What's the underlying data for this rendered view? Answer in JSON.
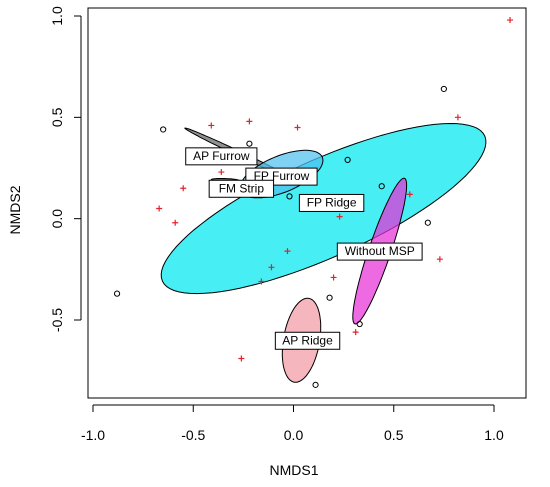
{
  "chart_data": {
    "type": "scatter",
    "title": "",
    "xlabel": "NMDS1",
    "ylabel": "NMDS2",
    "xlim": [
      -1.0,
      1.1
    ],
    "ylim": [
      -0.9,
      1.05
    ],
    "xticks": [
      -1.0,
      -0.5,
      0.0,
      0.5,
      1.0
    ],
    "xtick_labels": [
      "-1.0",
      "-0.5",
      "0.0",
      "0.5",
      "1.0"
    ],
    "yticks": [
      -0.5,
      0.0,
      0.5,
      1.0
    ],
    "ytick_labels": [
      "-0.5",
      "0.0",
      "0.5",
      "1.0"
    ],
    "grid": false,
    "legend": "none",
    "ellipses": [
      {
        "label": "AP Furrow",
        "color": "#666666",
        "cx": -0.27,
        "cy": 0.32,
        "rx": 0.3,
        "ry": 0.012,
        "angle_deg": -25
      },
      {
        "label": "FM Strip",
        "color": "#333333",
        "cx": -0.34,
        "cy": 0.19,
        "rx": 0.07,
        "ry": 0.008,
        "angle_deg": -2
      },
      {
        "label": "FP Ridge",
        "color": "#00e8f0",
        "cx": 0.15,
        "cy": 0.05,
        "rx": 0.88,
        "ry": 0.24,
        "angle_deg": 24
      },
      {
        "label": "FP Furrow",
        "color": "#4ec0f0",
        "cx": -0.06,
        "cy": 0.22,
        "rx": 0.22,
        "ry": 0.09,
        "angle_deg": 22
      },
      {
        "label": "Without MSP",
        "color": "#e830d8",
        "cx": 0.43,
        "cy": -0.16,
        "rx": 0.38,
        "ry": 0.055,
        "angle_deg": 71
      },
      {
        "label": "AP Ridge",
        "color": "#f29aa3",
        "cx": 0.04,
        "cy": -0.6,
        "rx": 0.21,
        "ry": 0.09,
        "angle_deg": 80
      }
    ],
    "ellipse_labels": [
      {
        "text": "AP Furrow",
        "x": -0.36,
        "y": 0.31
      },
      {
        "text": "FP Furrow",
        "x": -0.06,
        "y": 0.21
      },
      {
        "text": "FM Strip",
        "x": -0.26,
        "y": 0.15
      },
      {
        "text": "FP Ridge",
        "x": 0.19,
        "y": 0.08
      },
      {
        "text": "Without MSP",
        "x": 0.43,
        "y": -0.16
      },
      {
        "text": "AP Ridge",
        "x": 0.07,
        "y": -0.6
      }
    ],
    "series": [
      {
        "marker": "circle",
        "color": "#000000",
        "x": [
          -0.65,
          -0.22,
          -0.29,
          0.27,
          -0.37,
          -0.02,
          -0.88,
          0.75,
          0.44,
          0.67,
          0.18,
          0.33,
          0.11
        ],
        "y": [
          0.44,
          0.37,
          0.17,
          0.29,
          0.17,
          0.11,
          -0.37,
          0.64,
          0.16,
          -0.02,
          -0.39,
          -0.52,
          -0.82
        ]
      },
      {
        "marker": "plus",
        "color": "#e8202a",
        "x": [
          1.08,
          0.82,
          -0.41,
          -0.22,
          0.02,
          -0.36,
          -0.55,
          -0.67,
          -0.59,
          0.23,
          0.58,
          -0.03,
          -0.11,
          -0.16,
          0.73,
          0.2,
          0.31,
          -0.26
        ],
        "y": [
          0.98,
          0.5,
          0.46,
          0.48,
          0.45,
          0.23,
          0.15,
          0.05,
          -0.02,
          0.01,
          0.12,
          -0.16,
          -0.24,
          -0.31,
          -0.2,
          -0.29,
          -0.56,
          -0.69
        ]
      }
    ]
  }
}
